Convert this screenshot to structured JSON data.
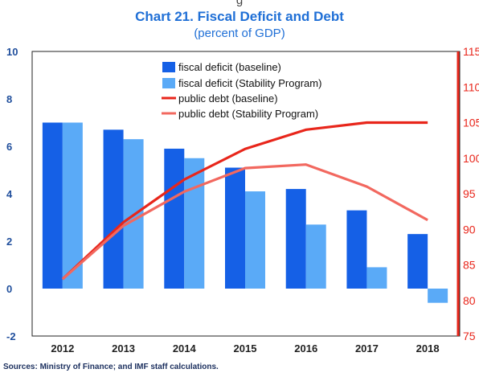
{
  "header_fragment": "g",
  "chart_data": {
    "type": "bar",
    "title": "Chart 21. Fiscal Deficit and Debt",
    "subtitle": "(percent of GDP)",
    "categories": [
      "2012",
      "2013",
      "2014",
      "2015",
      "2016",
      "2017",
      "2018"
    ],
    "y_left": {
      "ylim": [
        -2,
        10
      ],
      "ticks": [
        "-2",
        "0",
        "2",
        "4",
        "6",
        "8",
        "10"
      ]
    },
    "y_right": {
      "ylim": [
        75,
        115
      ],
      "ticks": [
        "75",
        "80",
        "85",
        "90",
        "95",
        "100",
        "105",
        "110",
        "115"
      ]
    },
    "bar_series": [
      {
        "name": "fiscal deficit (baseline)",
        "color": "#1560e6",
        "values": [
          7.0,
          6.7,
          5.9,
          5.1,
          4.2,
          3.3,
          2.3
        ]
      },
      {
        "name": "fiscal deficit (Stability Program)",
        "color": "#5aaaf7",
        "values": [
          7.0,
          6.3,
          5.5,
          4.1,
          2.7,
          0.9,
          -0.6
        ]
      }
    ],
    "line_series": [
      {
        "name": "public debt (baseline)",
        "color": "#e8261b",
        "axis": "right",
        "values": [
          83.0,
          91.0,
          97.0,
          101.3,
          104.0,
          105.0,
          105.0
        ]
      },
      {
        "name": "public debt (Stability Program)",
        "color": "#f2685f",
        "axis": "right",
        "values": [
          83.0,
          90.5,
          95.3,
          98.6,
          99.1,
          96.0,
          91.3
        ]
      }
    ],
    "legend_position": "top-center",
    "grid": false
  },
  "source_note": "Sources: Ministry of Finance; and IMF staff calculations."
}
